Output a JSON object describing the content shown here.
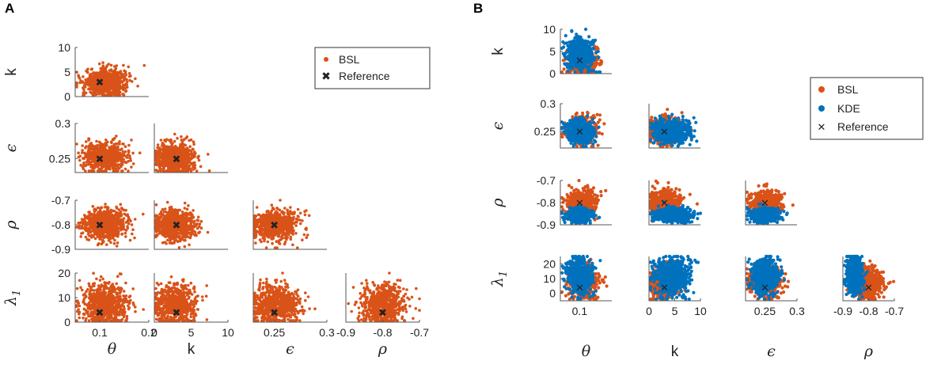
{
  "colors": {
    "bsl": "#D95319",
    "kde": "#0072BD",
    "reference": "#EDB120"
  },
  "panels": {
    "A": {
      "label": "A"
    },
    "B": {
      "label": "B"
    }
  },
  "chart_data": [
    {
      "panel": "A",
      "type": "scatter",
      "title": "",
      "legend": {
        "position": "top-right",
        "entries": [
          "BSL",
          "Reference"
        ]
      },
      "variables": [
        {
          "id": "theta",
          "label": "θ",
          "range": [
            0.05,
            0.2
          ],
          "ticks": [
            0.1,
            0.2
          ],
          "tick_labels": [
            "0.1",
            "0.2"
          ]
        },
        {
          "id": "k",
          "label": "k",
          "range": [
            0,
            10
          ],
          "ticks": [
            0,
            5,
            10
          ],
          "tick_labels": [
            "0",
            "5",
            "10"
          ]
        },
        {
          "id": "epsilon",
          "label": "ϵ",
          "range": [
            0.23,
            0.3
          ],
          "ticks": [
            0.25,
            0.3
          ],
          "tick_labels": [
            "0.25",
            "0.3"
          ]
        },
        {
          "id": "rho",
          "label": "ρ",
          "range": [
            -0.9,
            -0.7
          ],
          "ticks": [
            -0.9,
            -0.8,
            -0.7
          ],
          "tick_labels": [
            "-0.9",
            "-0.8",
            "-0.7"
          ]
        },
        {
          "id": "lambda1",
          "label": "λ",
          "label_sub": "1",
          "range": [
            0,
            20
          ],
          "ticks": [
            0,
            10,
            20
          ],
          "tick_labels": [
            "0",
            "10",
            "20"
          ]
        }
      ],
      "row_variables": [
        "k",
        "epsilon",
        "rho",
        "lambda1"
      ],
      "col_variables": [
        "theta",
        "k",
        "epsilon",
        "rho"
      ],
      "reference": {
        "theta": 0.1,
        "k": 3,
        "epsilon": 0.25,
        "rho": -0.8,
        "lambda1": 4
      },
      "series": [
        {
          "name": "BSL",
          "color_key": "bsl",
          "center": {
            "theta": 0.11,
            "k": 2.8,
            "epsilon": 0.251,
            "rho": -0.8,
            "lambda1": 7
          },
          "spread": {
            "theta": 0.022,
            "k": 1.4,
            "epsilon": 0.011,
            "rho": 0.03,
            "lambda1": 4
          },
          "points_per_panel": 700
        }
      ]
    },
    {
      "panel": "B",
      "type": "scatter",
      "title": "",
      "legend": {
        "position": "right",
        "entries": [
          "BSL",
          "KDE",
          "Reference"
        ]
      },
      "variables": [
        {
          "id": "theta",
          "label": "θ",
          "range": [
            0.04,
            0.2
          ],
          "ticks": [
            0.1
          ],
          "tick_labels": [
            "0.1"
          ]
        },
        {
          "id": "k",
          "label": "k",
          "range": [
            0,
            10
          ],
          "ticks": [
            0,
            5,
            10
          ],
          "tick_labels": [
            "0",
            "5",
            "10"
          ]
        },
        {
          "id": "epsilon",
          "label": "ϵ",
          "range": [
            0.22,
            0.3
          ],
          "ticks": [
            0.25,
            0.3
          ],
          "tick_labels": [
            "0.25",
            "0.3"
          ]
        },
        {
          "id": "rho",
          "label": "ρ",
          "range": [
            -0.9,
            -0.7
          ],
          "ticks": [
            -0.9,
            -0.8,
            -0.7
          ],
          "tick_labels": [
            "-0.9",
            "-0.8",
            "-0.7"
          ]
        },
        {
          "id": "lambda1",
          "label": "λ",
          "label_sub": "1",
          "range": [
            -5,
            25
          ],
          "ticks": [
            0,
            10,
            20
          ],
          "tick_labels": [
            "0",
            "10",
            "20"
          ]
        }
      ],
      "row_variables": [
        "k",
        "epsilon",
        "rho",
        "lambda1"
      ],
      "col_variables": [
        "theta",
        "k",
        "epsilon",
        "rho"
      ],
      "reference": {
        "theta": 0.1,
        "k": 3,
        "epsilon": 0.25,
        "rho": -0.8,
        "lambda1": 4
      },
      "series": [
        {
          "name": "BSL",
          "color_key": "bsl",
          "center": {
            "theta": 0.11,
            "k": 3,
            "epsilon": 0.252,
            "rho": -0.8,
            "lambda1": 7
          },
          "spread": {
            "theta": 0.022,
            "k": 1.5,
            "epsilon": 0.012,
            "rho": 0.028,
            "lambda1": 5
          },
          "points_per_panel": 500
        },
        {
          "name": "KDE",
          "color_key": "kde",
          "center": {
            "theta": 0.1,
            "k": 4.5,
            "epsilon": 0.25,
            "rho": -0.855,
            "lambda1": 12
          },
          "spread": {
            "theta": 0.02,
            "k": 1.8,
            "epsilon": 0.01,
            "rho": 0.015,
            "lambda1": 6
          },
          "points_per_panel": 600
        }
      ]
    }
  ]
}
